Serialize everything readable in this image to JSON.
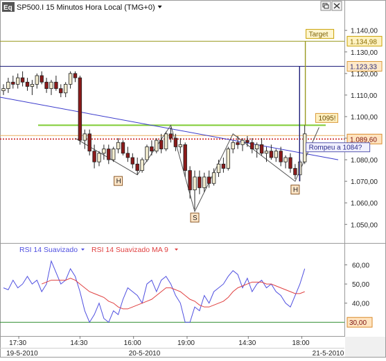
{
  "header": {
    "symbol_badge": "Eq",
    "title": "SP500.I 15 Minutos Hora Local (TMG+0)",
    "dropdown_icon": "chevron-down-icon",
    "restore_icon": "restore-window-icon",
    "close_icon": "close-icon"
  },
  "colors": {
    "up_candle": "#f2ecd0",
    "down_candle": "#8b1a1a",
    "wick": "#222222",
    "neckline": "#7fcc33",
    "trendline": "#3a3acc",
    "target_line": "#9a9a20",
    "level_1123": "#1e1e7a",
    "level_1089": "#cc2222",
    "pattern": "#555555",
    "rsi": "#4f4fe0",
    "rsi_ma": "#e04040",
    "rsi_level": "#2e8b2e"
  },
  "chart_data": [
    {
      "type": "candlestick",
      "title": "SP500.I 15 Minutos Hora Local (TMG+0)",
      "ylim": [
        1043,
        1147
      ],
      "y_ticks": [
        "1.140,00",
        "1.130,00",
        "1.120,00",
        "1.110,00",
        "1.100,00",
        "1.090,00",
        "1.080,00",
        "1.070,00",
        "1.060,00",
        "1.050,00"
      ],
      "y_tick_values": [
        1140,
        1130,
        1120,
        1110,
        1100,
        1090,
        1080,
        1070,
        1060,
        1050
      ],
      "candles": [
        [
          1112,
          1115,
          1110,
          1113
        ],
        [
          1113,
          1118,
          1111,
          1116
        ],
        [
          1116,
          1119,
          1113,
          1115
        ],
        [
          1115,
          1120,
          1113,
          1118
        ],
        [
          1118,
          1121,
          1114,
          1116
        ],
        [
          1116,
          1118,
          1112,
          1114
        ],
        [
          1114,
          1117,
          1110,
          1115
        ],
        [
          1115,
          1120,
          1113,
          1119
        ],
        [
          1119,
          1121,
          1115,
          1116
        ],
        [
          1116,
          1118,
          1111,
          1113
        ],
        [
          1113,
          1117,
          1110,
          1116
        ],
        [
          1116,
          1119,
          1112,
          1113
        ],
        [
          1113,
          1115,
          1109,
          1111
        ],
        [
          1111,
          1116,
          1109,
          1115
        ],
        [
          1115,
          1121,
          1113,
          1120
        ],
        [
          1120,
          1121,
          1116,
          1118
        ],
        [
          1118,
          1119,
          1087,
          1089
        ],
        [
          1089,
          1094,
          1085,
          1092
        ],
        [
          1092,
          1094,
          1082,
          1084
        ],
        [
          1084,
          1087,
          1076,
          1079
        ],
        [
          1079,
          1084,
          1077,
          1083
        ],
        [
          1083,
          1087,
          1080,
          1085
        ],
        [
          1085,
          1087,
          1078,
          1080
        ],
        [
          1080,
          1086,
          1079,
          1085
        ],
        [
          1085,
          1090,
          1083,
          1088
        ],
        [
          1088,
          1089,
          1082,
          1083
        ],
        [
          1083,
          1086,
          1079,
          1081
        ],
        [
          1081,
          1083,
          1076,
          1078
        ],
        [
          1078,
          1081,
          1073,
          1075
        ],
        [
          1075,
          1081,
          1074,
          1080
        ],
        [
          1080,
          1087,
          1079,
          1086
        ],
        [
          1086,
          1089,
          1082,
          1084
        ],
        [
          1084,
          1090,
          1083,
          1089
        ],
        [
          1089,
          1092,
          1083,
          1085
        ],
        [
          1085,
          1093,
          1084,
          1092
        ],
        [
          1092,
          1095,
          1088,
          1090
        ],
        [
          1090,
          1092,
          1084,
          1086
        ],
        [
          1086,
          1090,
          1083,
          1087
        ],
        [
          1087,
          1088,
          1072,
          1075
        ],
        [
          1075,
          1077,
          1062,
          1066
        ],
        [
          1066,
          1075,
          1057,
          1072
        ],
        [
          1072,
          1075,
          1064,
          1067
        ],
        [
          1067,
          1074,
          1065,
          1072
        ],
        [
          1072,
          1075,
          1067,
          1069
        ],
        [
          1069,
          1076,
          1068,
          1074
        ],
        [
          1074,
          1080,
          1072,
          1078
        ],
        [
          1078,
          1081,
          1074,
          1076
        ],
        [
          1076,
          1086,
          1075,
          1085
        ],
        [
          1085,
          1089,
          1083,
          1088
        ],
        [
          1088,
          1091,
          1085,
          1087
        ],
        [
          1087,
          1090,
          1084,
          1089
        ],
        [
          1089,
          1091,
          1086,
          1088
        ],
        [
          1088,
          1090,
          1083,
          1085
        ],
        [
          1085,
          1088,
          1081,
          1087
        ],
        [
          1087,
          1090,
          1082,
          1083
        ],
        [
          1083,
          1086,
          1079,
          1084
        ],
        [
          1084,
          1087,
          1080,
          1081
        ],
        [
          1081,
          1085,
          1079,
          1084
        ],
        [
          1084,
          1086,
          1077,
          1079
        ],
        [
          1079,
          1082,
          1076,
          1081
        ],
        [
          1081,
          1083,
          1074,
          1076
        ],
        [
          1076,
          1078,
          1071,
          1073
        ],
        [
          1073,
          1080,
          1070,
          1079
        ],
        [
          1079,
          1096,
          1078,
          1092
        ]
      ],
      "levels": [
        {
          "name": "target",
          "value": 1134.98,
          "label": "1.134,98"
        },
        {
          "name": "resistance",
          "value": 1123.33,
          "label": "1.123,33"
        },
        {
          "name": "support",
          "value": 1089.6,
          "label": "1.089,60"
        }
      ],
      "neckline": {
        "value": 1096
      },
      "trendline": {
        "from": [
          0,
          1109
        ],
        "to": [
          70,
          1080
        ]
      },
      "measured_move": {
        "index": 62,
        "low": 1070,
        "high": 1123.33
      },
      "target_projection": {
        "index": 64,
        "low": 1096,
        "high": 1134.98
      },
      "pattern_path": [
        [
          15,
          1090
        ],
        [
          28,
          1073
        ],
        [
          35,
          1096
        ],
        [
          40,
          1056
        ],
        [
          48,
          1092
        ],
        [
          61,
          1070
        ],
        [
          66,
          1095
        ]
      ],
      "annotations": [
        {
          "id": "target",
          "text": "Target",
          "index": 64,
          "value": 1134.98
        },
        {
          "id": "neck",
          "text": "1095!",
          "index": 65,
          "value": 1096
        },
        {
          "id": "break",
          "text": "Rompeu a 1084?",
          "index": 64,
          "value": 1084
        },
        {
          "id": "h1",
          "text": "H",
          "index": 24,
          "value": 1070
        },
        {
          "id": "s",
          "text": "S",
          "index": 40,
          "value": 1053
        },
        {
          "id": "h2",
          "text": "H",
          "index": 61,
          "value": 1066
        }
      ]
    },
    {
      "type": "line",
      "legend": [
        "RSI 14 Suavizado",
        "RSI 14 Suavizado MA 9"
      ],
      "ylim": [
        25,
        66
      ],
      "y_ticks": [
        "60,00",
        "50,00",
        "40,00"
      ],
      "y_tick_values": [
        60,
        50,
        40
      ],
      "level": {
        "value": 30,
        "label": "30,00"
      },
      "series": [
        {
          "name": "RSI 14 Suavizado",
          "values": [
            48,
            47,
            52,
            48,
            50,
            54,
            50,
            52,
            46,
            50,
            62,
            56,
            50,
            52,
            58,
            54,
            46,
            36,
            30,
            34,
            40,
            32,
            30,
            36,
            34,
            42,
            48,
            46,
            44,
            40,
            50,
            52,
            46,
            52,
            54,
            50,
            44,
            40,
            30,
            30,
            38,
            36,
            44,
            40,
            46,
            48,
            50,
            54,
            57,
            55,
            48,
            53,
            46,
            50,
            52,
            48,
            50,
            46,
            44,
            40,
            38,
            44,
            50,
            58
          ]
        },
        {
          "name": "RSI 14 Suavizado MA 9",
          "values": [
            null,
            null,
            null,
            null,
            null,
            null,
            null,
            null,
            50,
            51,
            52,
            52,
            52,
            52,
            53,
            52,
            50,
            48,
            46,
            45,
            44,
            43,
            41,
            40,
            38,
            37,
            37,
            38,
            39,
            40,
            41,
            42,
            44,
            46,
            48,
            48,
            47,
            46,
            44,
            42,
            41,
            39,
            38,
            38,
            39,
            40,
            41,
            43,
            46,
            48,
            49,
            50,
            51,
            51,
            51,
            50,
            50,
            49,
            48,
            47,
            46,
            45,
            45,
            46
          ]
        }
      ]
    }
  ],
  "x_axis": {
    "labels": [
      {
        "index": 2,
        "text": "17:30"
      },
      {
        "index": 10,
        "text": "14:30"
      },
      {
        "index": 17,
        "text": "16:00"
      },
      {
        "index": 24,
        "text": "19:00"
      },
      {
        "index": 32,
        "text": "14:30"
      },
      {
        "index": 39,
        "text": "18:00"
      }
    ],
    "dates": [
      {
        "index": 2,
        "text": "19-5-2010"
      },
      {
        "index": 18,
        "text": "20-5-2010"
      },
      {
        "index": 42,
        "text": "21-5-2010"
      }
    ]
  }
}
